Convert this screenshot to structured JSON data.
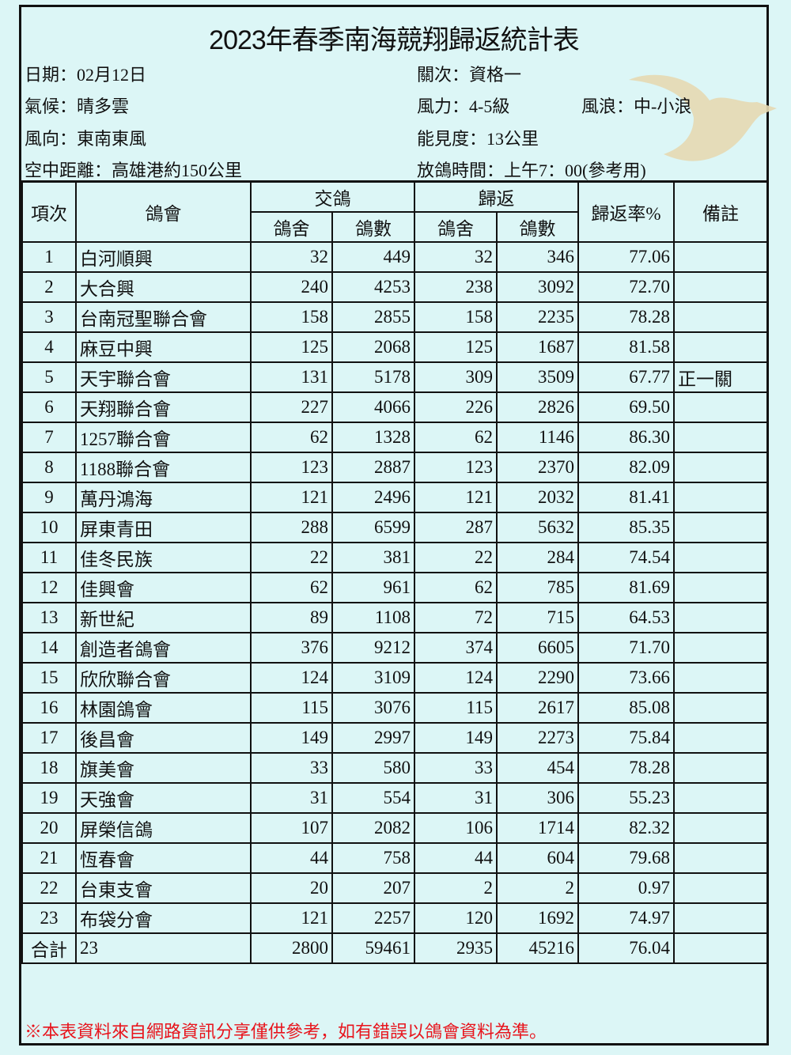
{
  "title": "2023年春季南海競翔歸返統計表",
  "info": {
    "date": "日期：02月12日",
    "weather": "氣候：晴多雲",
    "wind_dir": "風向：東南東風",
    "distance": "空中距離：高雄港約150公里",
    "stage": "關次：資格一",
    "wind_force": "風力：4-5級",
    "waves": "風浪：中-小浪",
    "visibility": "能見度：13公里",
    "release_time": "放鴿時間：上午7：00(參考用)"
  },
  "colors": {
    "background": "#dcf6f6",
    "note": "#e8141c",
    "dove": "#e6d9b3"
  },
  "headers": {
    "no": "項次",
    "club": "鴿會",
    "entry": "交鴿",
    "return": "歸返",
    "lofts": "鴿舍",
    "birds": "鴿數",
    "rate": "歸返率%",
    "remark": "備註"
  },
  "rows": [
    [
      "1",
      "白河順興",
      "32",
      "449",
      "32",
      "346",
      "77.06",
      ""
    ],
    [
      "2",
      "大合興",
      "240",
      "4253",
      "238",
      "3092",
      "72.70",
      ""
    ],
    [
      "3",
      "台南冠聖聯合會",
      "158",
      "2855",
      "158",
      "2235",
      "78.28",
      ""
    ],
    [
      "4",
      "麻豆中興",
      "125",
      "2068",
      "125",
      "1687",
      "81.58",
      ""
    ],
    [
      "5",
      "天宇聯合會",
      "131",
      "5178",
      "309",
      "3509",
      "67.77",
      "正一關"
    ],
    [
      "6",
      "天翔聯合會",
      "227",
      "4066",
      "226",
      "2826",
      "69.50",
      ""
    ],
    [
      "7",
      "1257聯合會",
      "62",
      "1328",
      "62",
      "1146",
      "86.30",
      ""
    ],
    [
      "8",
      "1188聯合會",
      "123",
      "2887",
      "123",
      "2370",
      "82.09",
      ""
    ],
    [
      "9",
      "萬丹鴻海",
      "121",
      "2496",
      "121",
      "2032",
      "81.41",
      ""
    ],
    [
      "10",
      "屏東青田",
      "288",
      "6599",
      "287",
      "5632",
      "85.35",
      ""
    ],
    [
      "11",
      "佳冬民族",
      "22",
      "381",
      "22",
      "284",
      "74.54",
      ""
    ],
    [
      "12",
      "佳興會",
      "62",
      "961",
      "62",
      "785",
      "81.69",
      ""
    ],
    [
      "13",
      "新世紀",
      "89",
      "1108",
      "72",
      "715",
      "64.53",
      ""
    ],
    [
      "14",
      "創造者鴿會",
      "376",
      "9212",
      "374",
      "6605",
      "71.70",
      ""
    ],
    [
      "15",
      "欣欣聯合會",
      "124",
      "3109",
      "124",
      "2290",
      "73.66",
      ""
    ],
    [
      "16",
      "林園鴿會",
      "115",
      "3076",
      "115",
      "2617",
      "85.08",
      ""
    ],
    [
      "17",
      "後昌會",
      "149",
      "2997",
      "149",
      "2273",
      "75.84",
      ""
    ],
    [
      "18",
      "旗美會",
      "33",
      "580",
      "33",
      "454",
      "78.28",
      ""
    ],
    [
      "19",
      "天強會",
      "31",
      "554",
      "31",
      "306",
      "55.23",
      ""
    ],
    [
      "20",
      "屏榮信鴿",
      "107",
      "2082",
      "106",
      "1714",
      "82.32",
      ""
    ],
    [
      "21",
      "恆春會",
      "44",
      "758",
      "44",
      "604",
      "79.68",
      ""
    ],
    [
      "22",
      "台東支會",
      "20",
      "207",
      "2",
      "2",
      "0.97",
      ""
    ],
    [
      "23",
      "布袋分會",
      "121",
      "2257",
      "120",
      "1692",
      "74.97",
      ""
    ]
  ],
  "total": [
    "合計",
    "23",
    "2800",
    "59461",
    "2935",
    "45216",
    "76.04",
    ""
  ],
  "note": "※本表資料來自網路資訊分享僅供參考，如有錯誤以鴿會資料為準。"
}
